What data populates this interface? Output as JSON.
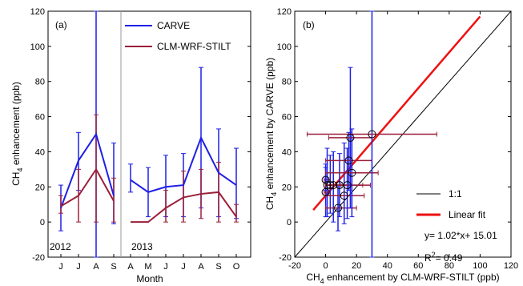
{
  "chart_data": [
    {
      "type": "line",
      "panel_label": "(a)",
      "xlabel": "Month",
      "ylabel": "CH",
      "ylabel_sub": "4",
      "ylabel_rest": " enhancement (ppb)",
      "ylim": [
        -20,
        120
      ],
      "yticks": [
        -20,
        0,
        20,
        40,
        60,
        80,
        100,
        120
      ],
      "grid": false,
      "legend_position": "top-right",
      "groups": [
        {
          "year": "2012",
          "months": [
            "J",
            "J",
            "A",
            "S"
          ]
        },
        {
          "year": "2013",
          "months": [
            "A",
            "M",
            "J",
            "J",
            "A",
            "S",
            "O"
          ]
        }
      ],
      "series": [
        {
          "name": "CARVE",
          "color": "#1f1fe6",
          "segments": [
            [
              {
                "month": "J",
                "y": 8,
                "lo": -5,
                "hi": 21
              },
              {
                "month": "J",
                "y": 35,
                "lo": 18,
                "hi": 51
              },
              {
                "month": "A",
                "y": 50,
                "lo": -20,
                "hi": 120
              },
              {
                "month": "S",
                "y": 15,
                "lo": -1,
                "hi": 45
              }
            ],
            [
              {
                "month": "A",
                "y": 24,
                "lo": 17,
                "hi": 33
              },
              {
                "month": "M",
                "y": 17,
                "lo": 3,
                "hi": 31
              },
              {
                "month": "J",
                "y": 20,
                "lo": 3,
                "hi": 38
              },
              {
                "month": "J",
                "y": 21,
                "lo": 3,
                "hi": 39
              },
              {
                "month": "A",
                "y": 48,
                "lo": 8,
                "hi": 88
              },
              {
                "month": "S",
                "y": 28,
                "lo": 3,
                "hi": 53
              },
              {
                "month": "O",
                "y": 21,
                "lo": 2,
                "hi": 42
              }
            ]
          ]
        },
        {
          "name": "CLM-WRF-STILT",
          "color": "#9b1f3a",
          "segments": [
            [
              {
                "month": "J",
                "y": 9,
                "lo": 5,
                "hi": 15
              },
              {
                "month": "J",
                "y": 15,
                "lo": 0,
                "hi": 30
              },
              {
                "month": "A",
                "y": 30,
                "lo": 0,
                "hi": 61
              },
              {
                "month": "S",
                "y": 12,
                "lo": 0,
                "hi": 25
              }
            ],
            [
              {
                "month": "A",
                "y": 0,
                "lo": 0,
                "hi": 0
              },
              {
                "month": "M",
                "y": 0,
                "lo": 0,
                "hi": 0
              },
              {
                "month": "J",
                "y": 8,
                "lo": 0,
                "hi": 18
              },
              {
                "month": "J",
                "y": 14,
                "lo": 0,
                "hi": 29
              },
              {
                "month": "A",
                "y": 16,
                "lo": 2,
                "hi": 30
              },
              {
                "month": "S",
                "y": 17,
                "lo": 0,
                "hi": 34
              },
              {
                "month": "O",
                "y": 3,
                "lo": 0,
                "hi": 10
              }
            ]
          ]
        }
      ]
    },
    {
      "type": "scatter",
      "panel_label": "(b)",
      "xlabel": "CH",
      "xlabel_sub": "4",
      "xlabel_rest": " enhancement by CLM-WRF-STILT  (ppb)",
      "ylabel": "CH",
      "ylabel_sub": "4",
      "ylabel_rest": " enhancement by CARVE  (ppb)",
      "xlim": [
        -20,
        120
      ],
      "ylim": [
        -20,
        120
      ],
      "xticks": [
        -20,
        0,
        20,
        40,
        60,
        80,
        100,
        120
      ],
      "yticks": [
        -20,
        0,
        20,
        40,
        60,
        80,
        100,
        120
      ],
      "grid": false,
      "legend_position": "right",
      "legend": [
        {
          "label": "1:1",
          "color": "#000000"
        },
        {
          "label": "Linear fit",
          "color": "#ee1111"
        }
      ],
      "annotations": [
        "y= 1.02*x+ 15.01",
        "R",
        "2",
        "= 0.49"
      ],
      "fit": {
        "slope": 1.02,
        "intercept": 15.01,
        "x_range": [
          -8,
          100
        ]
      },
      "points": [
        {
          "x": 0,
          "y": 24,
          "xlo": -1,
          "xhi": 2,
          "ylo": 18,
          "yhi": 33,
          "vc": "#1f1fe6",
          "hc": "#9b1f3a"
        },
        {
          "x": 0,
          "y": 17,
          "xlo": -1,
          "xhi": 1,
          "ylo": 3,
          "yhi": 31,
          "vc": "#1f1fe6",
          "hc": "#9b1f3a"
        },
        {
          "x": 1,
          "y": 21,
          "xlo": 0,
          "xhi": 10,
          "ylo": 3,
          "yhi": 42,
          "vc": "#1f1fe6",
          "hc": "#9b1f3a"
        },
        {
          "x": 3,
          "y": 21,
          "xlo": 0,
          "xhi": 12,
          "ylo": 5,
          "yhi": 38,
          "vc": "#1f1fe6",
          "hc": "#9b1f3a"
        },
        {
          "x": 5,
          "y": 21,
          "xlo": 0,
          "xhi": 15,
          "ylo": 0,
          "yhi": 40,
          "vc": "#1f1fe6",
          "hc": "#9b1f3a"
        },
        {
          "x": 8,
          "y": 8,
          "xlo": 0,
          "xhi": 20,
          "ylo": -5,
          "yhi": 21,
          "vc": "#1f1fe6",
          "hc": "#9b1f3a"
        },
        {
          "x": 9,
          "y": 21,
          "xlo": 0,
          "xhi": 24,
          "ylo": 3,
          "yhi": 39,
          "vc": "#1f1fe6",
          "hc": "#9b1f3a"
        },
        {
          "x": 12,
          "y": 15,
          "xlo": 0,
          "xhi": 25,
          "ylo": -1,
          "yhi": 45,
          "vc": "#1f1fe6",
          "hc": "#9b1f3a"
        },
        {
          "x": 14,
          "y": 21,
          "xlo": 0,
          "xhi": 29,
          "ylo": 2,
          "yhi": 42,
          "vc": "#1f1fe6",
          "hc": "#9b1f3a"
        },
        {
          "x": 15,
          "y": 35,
          "xlo": 0,
          "xhi": 30,
          "ylo": 18,
          "yhi": 51,
          "vc": "#1f1fe6",
          "hc": "#9b1f3a"
        },
        {
          "x": 16,
          "y": 48,
          "xlo": 2,
          "xhi": 30,
          "ylo": 8,
          "yhi": 88,
          "vc": "#1f1fe6",
          "hc": "#9b1f3a"
        },
        {
          "x": 17,
          "y": 28,
          "xlo": 0,
          "xhi": 34,
          "ylo": 3,
          "yhi": 53,
          "vc": "#1f1fe6",
          "hc": "#9b1f3a"
        },
        {
          "x": 30,
          "y": 50,
          "xlo": -12,
          "xhi": 72,
          "ylo": -20,
          "yhi": 120,
          "vc": "#1f1fe6",
          "hc": "#9b1f3a"
        }
      ]
    }
  ]
}
